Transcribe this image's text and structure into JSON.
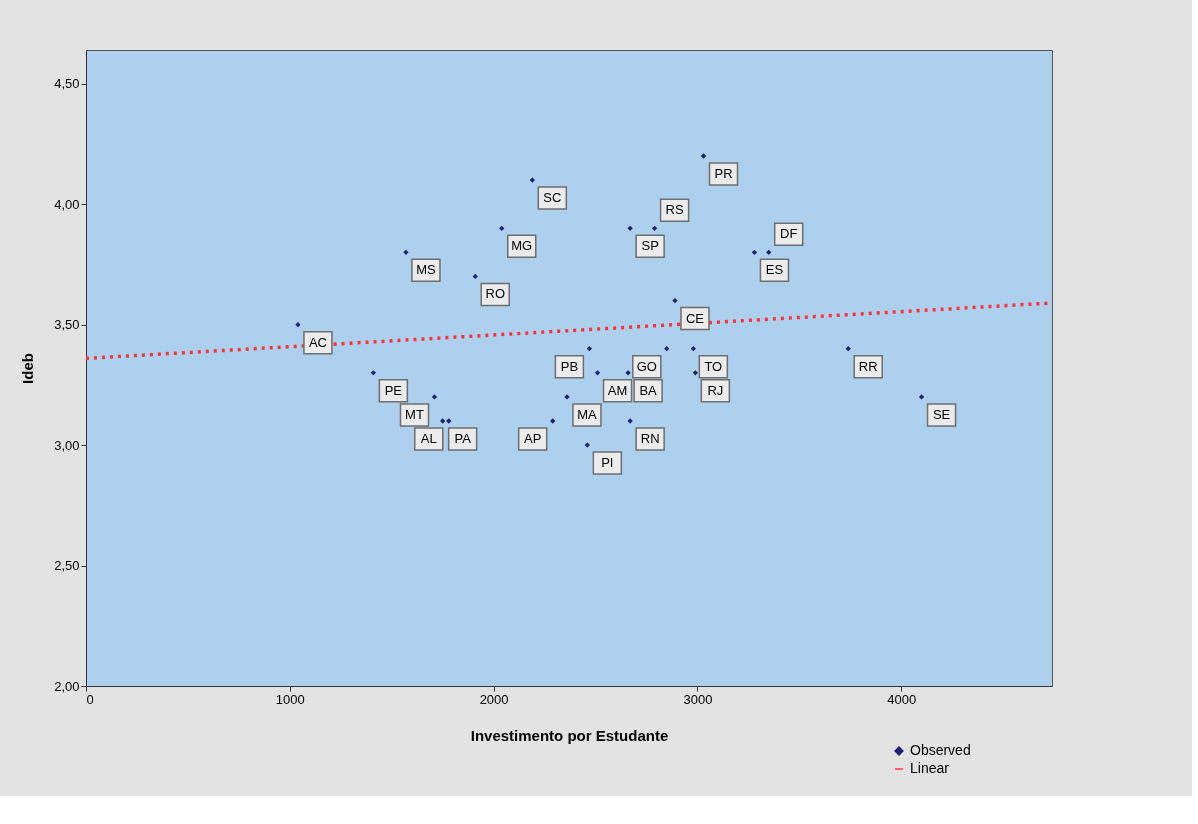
{
  "chart_data": {
    "type": "scatter",
    "xlabel": "Investimento por Estudante",
    "ylabel": "Ideb",
    "xlim": [
      0,
      4740
    ],
    "ylim": [
      2.0,
      4.64
    ],
    "xticks": [
      0,
      1000,
      2000,
      3000,
      4000
    ],
    "yticks": [
      {
        "value": 2.0,
        "label": "2,00"
      },
      {
        "value": 2.5,
        "label": "2,50"
      },
      {
        "value": 3.0,
        "label": "3,00"
      },
      {
        "value": 3.5,
        "label": "3,50"
      },
      {
        "value": 4.0,
        "label": "4,00"
      },
      {
        "value": 4.5,
        "label": "4,50"
      }
    ],
    "grid": false,
    "legend": "bottom right",
    "series": [
      {
        "name": "Observed",
        "type": "scatter",
        "marker": "diamond",
        "color": "#1f1f7a",
        "x": [
          1040,
          1570,
          1910,
          2040,
          2190,
          1410,
          1710,
          1750,
          1780,
          2290,
          2360,
          2470,
          2460,
          2510,
          2660,
          2670,
          2670,
          2790,
          2890,
          2850,
          2980,
          2990,
          3030,
          3280,
          3350,
          3740,
          4100
        ],
        "values": [
          3.5,
          3.8,
          3.7,
          3.9,
          4.1,
          3.3,
          3.2,
          3.1,
          3.1,
          3.1,
          3.2,
          3.4,
          3.0,
          3.3,
          3.3,
          3.1,
          3.9,
          3.9,
          3.6,
          3.4,
          3.4,
          3.3,
          4.2,
          3.8,
          3.8,
          3.4,
          3.2
        ]
      },
      {
        "name": "Linear",
        "type": "line",
        "line_style": "dotted",
        "color": "#ff3333",
        "x": [
          0,
          4740
        ],
        "values": [
          3.36,
          3.59
        ]
      }
    ],
    "annotations": [
      {
        "text": "AC",
        "x": 1040,
        "y": 3.5
      },
      {
        "text": "MS",
        "x": 1570,
        "y": 3.8
      },
      {
        "text": "RO",
        "x": 1910,
        "y": 3.7
      },
      {
        "text": "MG",
        "x": 2040,
        "y": 3.9
      },
      {
        "text": "SC",
        "x": 2190,
        "y": 4.1
      },
      {
        "text": "PE",
        "x": 1410,
        "y": 3.3
      },
      {
        "text": "MT",
        "x": 1710,
        "y": 3.2
      },
      {
        "text": "PA",
        "x": 1750,
        "y": 3.1
      },
      {
        "text": "AL",
        "x": 1780,
        "y": 3.1
      },
      {
        "text": "AP",
        "x": 2290,
        "y": 3.1
      },
      {
        "text": "MA",
        "x": 2360,
        "y": 3.2
      },
      {
        "text": "PB",
        "x": 2470,
        "y": 3.4
      },
      {
        "text": "PI",
        "x": 2460,
        "y": 3.0
      },
      {
        "text": "AM",
        "x": 2510,
        "y": 3.3
      },
      {
        "text": "BA",
        "x": 2660,
        "y": 3.3
      },
      {
        "text": "RN",
        "x": 2670,
        "y": 3.1
      },
      {
        "text": "SP",
        "x": 2670,
        "y": 3.9
      },
      {
        "text": "RS",
        "x": 2790,
        "y": 3.9
      },
      {
        "text": "CE",
        "x": 2890,
        "y": 3.6
      },
      {
        "text": "GO",
        "x": 2850,
        "y": 3.4
      },
      {
        "text": "TO",
        "x": 2980,
        "y": 3.4
      },
      {
        "text": "RJ",
        "x": 2990,
        "y": 3.3
      },
      {
        "text": "PR",
        "x": 3030,
        "y": 4.2
      },
      {
        "text": "ES",
        "x": 3280,
        "y": 3.8
      },
      {
        "text": "DF",
        "x": 3350,
        "y": 3.8
      },
      {
        "text": "RR",
        "x": 3740,
        "y": 3.4
      },
      {
        "text": "SE",
        "x": 4100,
        "y": 3.2
      }
    ]
  }
}
